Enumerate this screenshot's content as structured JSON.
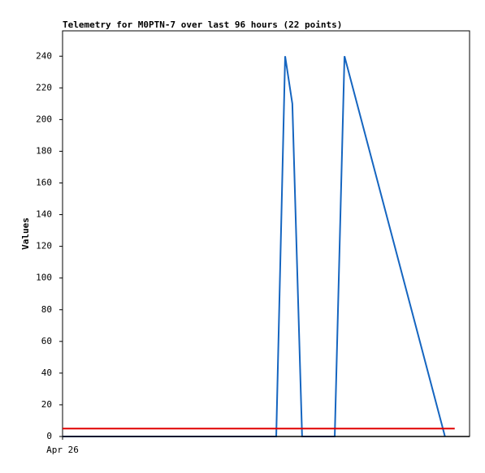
{
  "chart_data": {
    "type": "line",
    "title": "Telemetry for M0PTN-7 over last 96 hours (22 points)",
    "y_label": "Values",
    "xlim": [
      0,
      96
    ],
    "xticks": [
      {
        "value": 0,
        "label": "Apr 26"
      }
    ],
    "ylim": [
      0,
      256
    ],
    "yticks": [
      0,
      20,
      40,
      60,
      80,
      100,
      120,
      140,
      160,
      180,
      200,
      220,
      240
    ],
    "series": [
      {
        "color": "#1565c0",
        "x": [
          0,
          4,
          8,
          12,
          16,
          20,
          24,
          28,
          32,
          36,
          40,
          44,
          48,
          50.4,
          52.5,
          54.2,
          56.5,
          58,
          60,
          64.2,
          66.5,
          90.2
        ],
        "values": [
          0,
          0,
          0,
          0,
          0,
          0,
          0,
          0,
          0,
          0,
          0,
          0,
          0,
          0,
          240,
          210,
          0,
          0,
          0,
          0,
          240,
          0
        ]
      },
      {
        "color": "#e00000",
        "x": [
          0,
          92.5
        ],
        "values": [
          5,
          5
        ]
      }
    ]
  }
}
